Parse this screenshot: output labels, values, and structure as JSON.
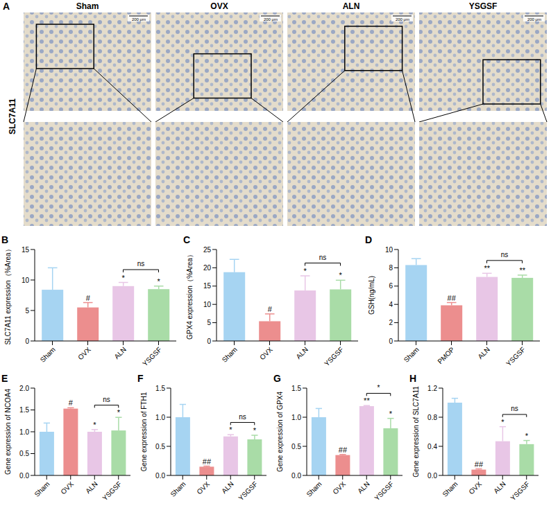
{
  "panel_a": {
    "letter": "A",
    "row_label": "SLC7A11",
    "groups": [
      "Sham",
      "OVX",
      "ALN",
      "YSGSF"
    ],
    "scale_bar": "200 μm"
  },
  "chart_data": [
    {
      "panel": "B",
      "type": "bar",
      "y_label": "SLC7A11 expression（%Area）",
      "categories": [
        "Sham",
        "OVX",
        "ALN",
        "YSGSF"
      ],
      "values": [
        8.4,
        5.5,
        9.0,
        8.5
      ],
      "errors": [
        3.6,
        0.8,
        0.6,
        0.5
      ],
      "marks": [
        null,
        "#",
        "*",
        "*"
      ],
      "comparison": {
        "from": "ALN",
        "to": "YSGSF",
        "label": "ns"
      },
      "colors": [
        "#a6d4f2",
        "#ec8e8e",
        "#e8c6e6",
        "#a9dca7"
      ],
      "ylim": [
        0,
        15
      ],
      "yticks": [
        0,
        5,
        10,
        15
      ]
    },
    {
      "panel": "C",
      "type": "bar",
      "y_label": "GPX4 expression（%Area）",
      "categories": [
        "Sham",
        "OVX",
        "ALN",
        "YSGSF"
      ],
      "values": [
        18.8,
        5.4,
        13.8,
        14.1
      ],
      "errors": [
        3.5,
        2.0,
        4.0,
        2.5
      ],
      "marks": [
        null,
        "#",
        "*",
        "*"
      ],
      "comparison": {
        "from": "ALN",
        "to": "YSGSF",
        "label": "ns"
      },
      "colors": [
        "#a6d4f2",
        "#ec8e8e",
        "#e8c6e6",
        "#a9dca7"
      ],
      "ylim": [
        0,
        25
      ],
      "yticks": [
        0,
        5,
        10,
        15,
        20,
        25
      ]
    },
    {
      "panel": "D",
      "type": "bar",
      "y_label": "GSH(ng/mL)",
      "categories": [
        "Sham",
        "PMOP",
        "ALN",
        "YSGSF"
      ],
      "values": [
        8.3,
        3.9,
        7.0,
        6.9
      ],
      "errors": [
        0.7,
        0.3,
        0.4,
        0.3
      ],
      "marks": [
        null,
        "##",
        "**",
        "**"
      ],
      "comparison": {
        "from": "ALN",
        "to": "YSGSF",
        "label": "ns"
      },
      "colors": [
        "#a6d4f2",
        "#ec8e8e",
        "#e8c6e6",
        "#a9dca7"
      ],
      "ylim": [
        0,
        10
      ],
      "yticks": [
        0,
        2,
        4,
        6,
        8,
        10
      ]
    },
    {
      "panel": "E",
      "type": "bar",
      "y_label": "Gene expression of NCOA4",
      "categories": [
        "Sham",
        "OVX",
        "ALN",
        "YSGSF"
      ],
      "values": [
        1.0,
        1.53,
        1.0,
        1.03
      ],
      "errors": [
        0.2,
        0.02,
        0.05,
        0.3
      ],
      "marks": [
        null,
        "#",
        "*",
        "*"
      ],
      "comparison": {
        "from": "ALN",
        "to": "YSGSF",
        "label": "ns"
      },
      "colors": [
        "#a6d4f2",
        "#ec8e8e",
        "#e8c6e6",
        "#a9dca7"
      ],
      "ylim": [
        0,
        2
      ],
      "yticks": [
        {
          "value": 0,
          "label": "0.0"
        },
        0.5,
        {
          "value": 1,
          "label": "1.0"
        },
        1.5,
        {
          "value": 2,
          "label": "2.0"
        }
      ]
    },
    {
      "panel": "F",
      "type": "bar",
      "y_label": "Gene expression of FTH1",
      "categories": [
        "Sham",
        "OVX",
        "ALN",
        "YSGSF"
      ],
      "values": [
        1.0,
        0.15,
        0.67,
        0.62
      ],
      "errors": [
        0.22,
        0.01,
        0.03,
        0.07
      ],
      "marks": [
        null,
        "##",
        "*",
        "*"
      ],
      "comparison": {
        "from": "ALN",
        "to": "YSGSF",
        "label": "ns"
      },
      "colors": [
        "#a6d4f2",
        "#ec8e8e",
        "#e8c6e6",
        "#a9dca7"
      ],
      "ylim": [
        0,
        1.5
      ],
      "yticks": [
        {
          "value": 0,
          "label": "0.0"
        },
        0.5,
        {
          "value": 1,
          "label": "1.0"
        },
        1.5
      ]
    },
    {
      "panel": "G",
      "type": "bar",
      "y_label": "Gene expression of GPX4",
      "categories": [
        "Sham",
        "OVX",
        "ALN",
        "YSGSF"
      ],
      "values": [
        1.0,
        0.35,
        1.19,
        0.81
      ],
      "errors": [
        0.15,
        0.01,
        0.01,
        0.17
      ],
      "marks": [
        null,
        "##",
        "**",
        "*"
      ],
      "comparison": {
        "from": "ALN",
        "to": "YSGSF",
        "label": "*"
      },
      "colors": [
        "#a6d4f2",
        "#ec8e8e",
        "#e8c6e6",
        "#a9dca7"
      ],
      "ylim": [
        0,
        1.5
      ],
      "yticks": [
        {
          "value": 0,
          "label": "0.0"
        },
        0.5,
        {
          "value": 1,
          "label": "1.0"
        },
        1.5
      ]
    },
    {
      "panel": "H",
      "type": "bar",
      "y_label": "Gene expression of SLC7A11",
      "categories": [
        "Sham",
        "OVX",
        "ALN",
        "YSGSF"
      ],
      "values": [
        1.0,
        0.08,
        0.47,
        0.43
      ],
      "errors": [
        0.06,
        0.01,
        0.2,
        0.05
      ],
      "marks": [
        null,
        "##",
        "*",
        "*"
      ],
      "comparison": {
        "from": "ALN",
        "to": "YSGSF",
        "label": "ns"
      },
      "colors": [
        "#a6d4f2",
        "#ec8e8e",
        "#e8c6e6",
        "#a9dca7"
      ],
      "ylim": [
        0,
        1.2
      ],
      "yticks": [
        {
          "value": 0,
          "label": "0.0"
        },
        0.4,
        0.8,
        1.2
      ]
    }
  ]
}
